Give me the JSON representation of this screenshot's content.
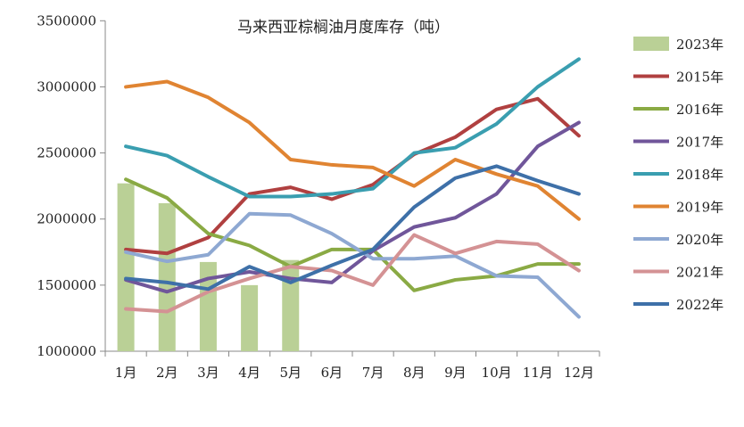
{
  "chart_data": {
    "type": "line",
    "title": "马来西亚棕榈油月度库存（吨）",
    "xlabel": "",
    "ylabel": "",
    "categories": [
      "1月",
      "2月",
      "3月",
      "4月",
      "5月",
      "6月",
      "7月",
      "8月",
      "9月",
      "10月",
      "11月",
      "12月"
    ],
    "ylim": [
      1000000,
      3500000
    ],
    "yticks": [
      "1000000",
      "1500000",
      "2000000",
      "2500000",
      "3000000",
      "3500000"
    ],
    "grid": false,
    "legend_position": "right",
    "bars": {
      "name": "2023年",
      "color": "#bad096",
      "values": [
        2270000,
        2120000,
        1675000,
        1500000,
        1690000
      ]
    },
    "series": [
      {
        "name": "2015年",
        "color": "#b04040",
        "values": [
          1770000,
          1740000,
          1860000,
          2190000,
          2240000,
          2150000,
          2260000,
          2490000,
          2620000,
          2830000,
          2910000,
          2630000
        ]
      },
      {
        "name": "2016年",
        "color": "#8aaa44",
        "values": [
          2300000,
          2160000,
          1890000,
          1800000,
          1640000,
          1770000,
          1770000,
          1460000,
          1540000,
          1570000,
          1660000,
          1660000
        ]
      },
      {
        "name": "2017年",
        "color": "#70569a",
        "values": [
          1540000,
          1450000,
          1550000,
          1600000,
          1550000,
          1520000,
          1760000,
          1940000,
          2010000,
          2190000,
          2550000,
          2730000
        ]
      },
      {
        "name": "2018年",
        "color": "#3a9eb0",
        "values": [
          2550000,
          2480000,
          2320000,
          2170000,
          2170000,
          2190000,
          2230000,
          2500000,
          2540000,
          2720000,
          3000000,
          3210000
        ]
      },
      {
        "name": "2019年",
        "color": "#e08432",
        "values": [
          3000000,
          3040000,
          2920000,
          2730000,
          2450000,
          2410000,
          2390000,
          2250000,
          2450000,
          2340000,
          2250000,
          2000000
        ]
      },
      {
        "name": "2020年",
        "color": "#8ea8d2",
        "values": [
          1750000,
          1680000,
          1730000,
          2040000,
          2030000,
          1890000,
          1700000,
          1700000,
          1720000,
          1570000,
          1560000,
          1260000
        ]
      },
      {
        "name": "2021年",
        "color": "#d49294",
        "values": [
          1320000,
          1300000,
          1450000,
          1550000,
          1640000,
          1610000,
          1500000,
          1880000,
          1740000,
          1830000,
          1810000,
          1610000
        ]
      },
      {
        "name": "2022年",
        "color": "#3e70a8",
        "values": [
          1550000,
          1520000,
          1470000,
          1640000,
          1520000,
          1650000,
          1770000,
          2090000,
          2310000,
          2400000,
          2290000,
          2190000
        ]
      }
    ]
  }
}
